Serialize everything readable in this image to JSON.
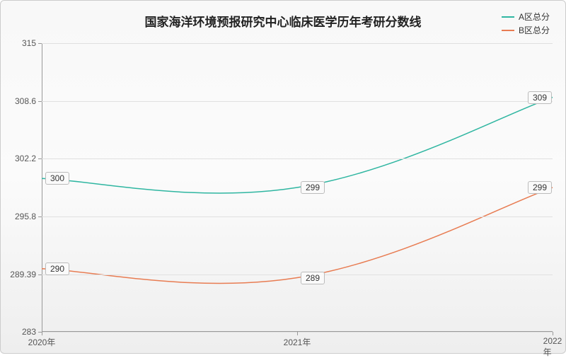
{
  "chart": {
    "type": "line",
    "title": "国家海洋环境预报研究中心临床医学历年考研分数线",
    "title_fontsize": 17,
    "background_gradient": [
      "#f8f8f8",
      "#fbfbfb",
      "#eeeeee"
    ],
    "grid_color": "#e0e0e0",
    "axis_color": "#999999",
    "label_color": "#555555",
    "legend_fontsize": 12,
    "label_fontsize": 12,
    "x_categories": [
      "2020年",
      "2021年",
      "2022年"
    ],
    "ylim": [
      283,
      315
    ],
    "yticks": [
      283,
      289.39,
      295.8,
      302.2,
      308.6,
      315
    ],
    "series": [
      {
        "name": "A区总分",
        "color": "#2fb6a1",
        "line_width": 1.5,
        "values": [
          300,
          299,
          309
        ],
        "smooth": true
      },
      {
        "name": "B区总分",
        "color": "#e87c52",
        "line_width": 1.5,
        "values": [
          290,
          289,
          299
        ],
        "smooth": true
      }
    ],
    "data_label_bg": "#fafafa",
    "data_label_border": "#bbbbbb"
  }
}
